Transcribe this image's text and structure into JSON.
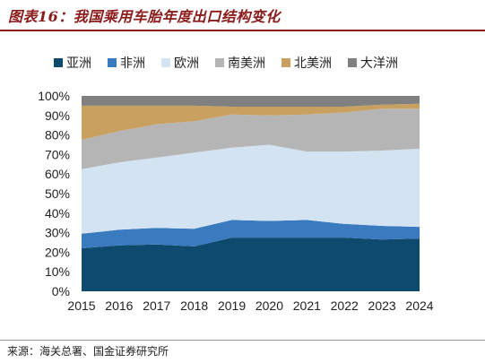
{
  "title": "图表16：我国乘用车胎年度出口结构变化",
  "source": "来源：海关总署、国金证券研究所",
  "chart_data": {
    "type": "area",
    "stacked": true,
    "percent": true,
    "x": [
      "2015",
      "2016",
      "2017",
      "2018",
      "2019",
      "2020",
      "2021",
      "2022",
      "2023",
      "2024"
    ],
    "ylim": [
      0,
      100
    ],
    "yticks": [
      "0%",
      "10%",
      "20%",
      "30%",
      "40%",
      "50%",
      "60%",
      "70%",
      "80%",
      "90%",
      "100%"
    ],
    "legend_position": "top",
    "series": [
      {
        "name": "亚洲",
        "color": "#0d4a6e",
        "values": [
          22.0,
          23.5,
          24.0,
          23.0,
          27.5,
          27.5,
          27.5,
          27.5,
          26.5,
          27.0
        ]
      },
      {
        "name": "非洲",
        "color": "#3a7bbf",
        "values": [
          7.5,
          8.0,
          8.5,
          9.0,
          9.0,
          8.5,
          9.0,
          7.0,
          7.0,
          6.0
        ]
      },
      {
        "name": "欧洲",
        "color": "#d3e3f1",
        "values": [
          33.0,
          34.5,
          36.0,
          39.0,
          37.0,
          39.0,
          35.0,
          37.0,
          38.5,
          40.0
        ]
      },
      {
        "name": "南美洲",
        "color": "#b5b5b5",
        "values": [
          15.0,
          16.0,
          17.0,
          16.0,
          17.0,
          15.0,
          19.0,
          20.0,
          21.5,
          20.5
        ]
      },
      {
        "name": "北美洲",
        "color": "#c8a160",
        "values": [
          17.5,
          13.0,
          9.5,
          8.0,
          4.0,
          4.5,
          4.0,
          3.0,
          2.0,
          2.5
        ]
      },
      {
        "name": "大洋洲",
        "color": "#808080",
        "values": [
          5.0,
          5.0,
          5.0,
          5.0,
          5.5,
          5.5,
          5.5,
          5.5,
          4.5,
          4.0
        ]
      }
    ]
  }
}
